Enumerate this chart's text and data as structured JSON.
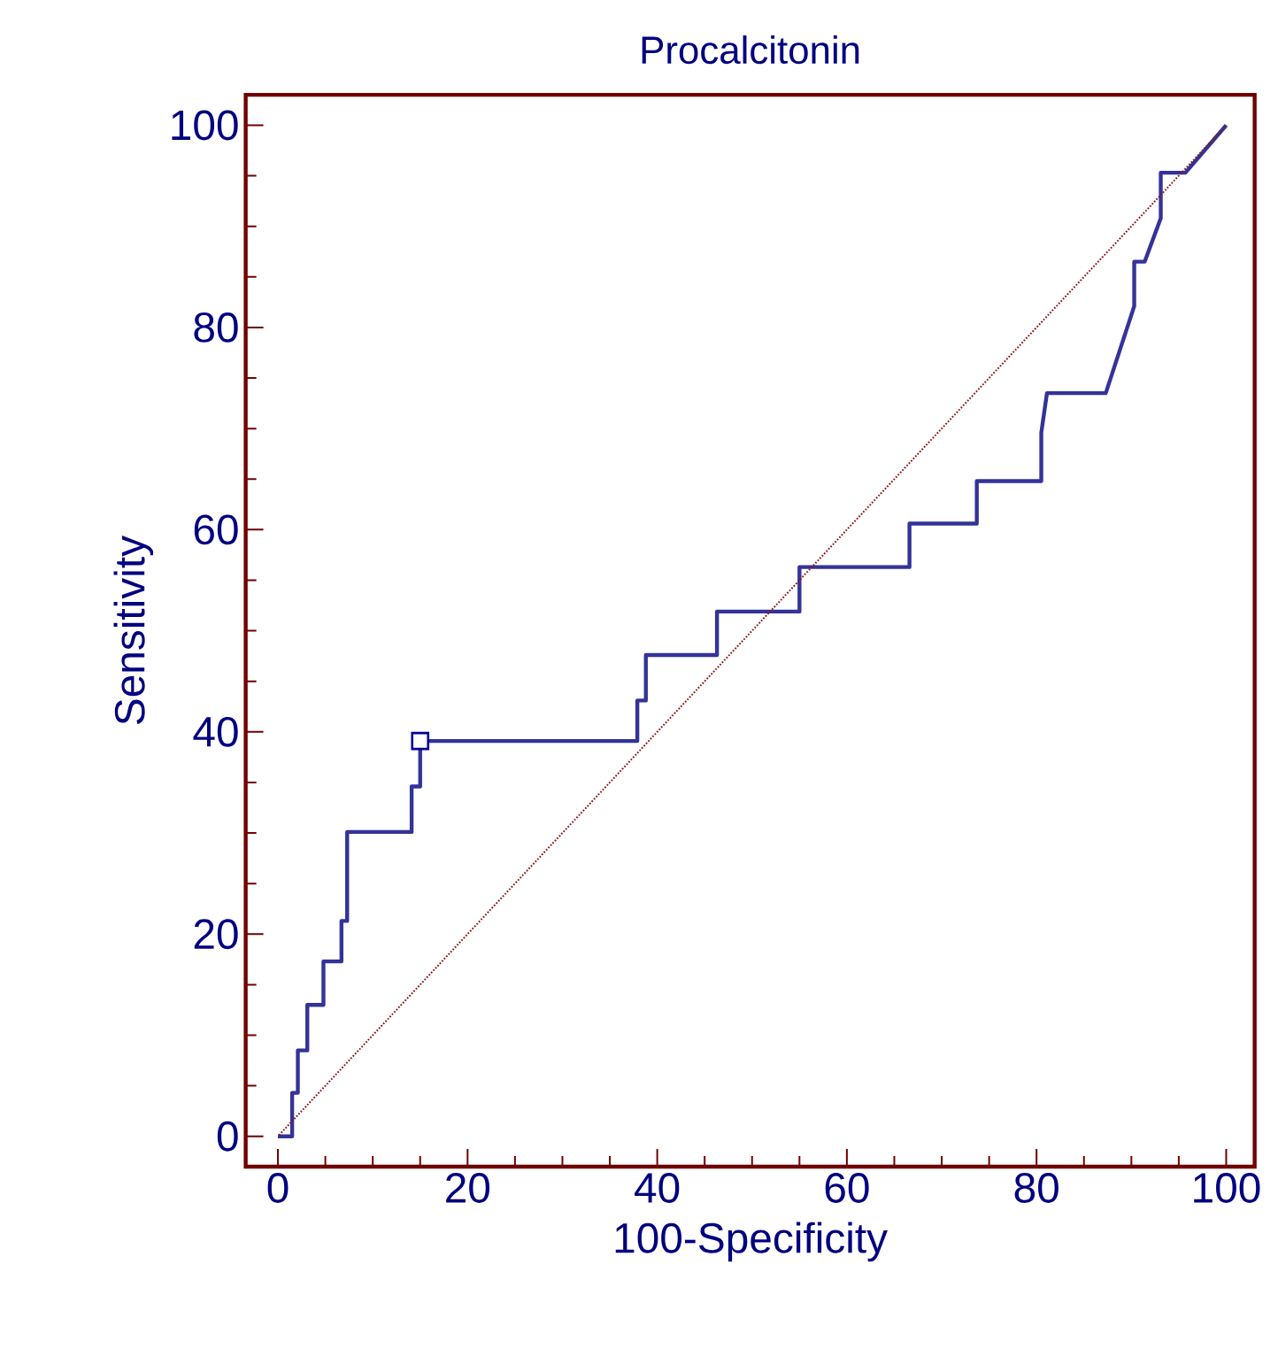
{
  "chart_data": {
    "type": "line",
    "title": "Procalcitonin",
    "xlabel": "100-Specificity",
    "ylabel": "Sensitivity",
    "xlim": [
      -3.4,
      103
    ],
    "ylim": [
      -3,
      103
    ],
    "xticks": [
      0,
      20,
      40,
      60,
      80,
      100
    ],
    "yticks": [
      0,
      20,
      40,
      60,
      80,
      100
    ],
    "series": [
      {
        "color": "#333399",
        "line_style": "solid",
        "marker": "none",
        "x": [
          0,
          1.5,
          1.5,
          2.1,
          2.1,
          3.1,
          3.1,
          4.8,
          4.8,
          6.7,
          6.7,
          7.3,
          7.3,
          14.1,
          14.1,
          15.0,
          15.0,
          37.9,
          37.9,
          38.8,
          38.8,
          46.3,
          46.3,
          55.0,
          55.0,
          66.6,
          66.6,
          73.7,
          73.7,
          80.5,
          80.5,
          81.1,
          87.3,
          90.3,
          90.3,
          91.4,
          93.1,
          93.1,
          95.7,
          100
        ],
        "values": [
          0,
          0,
          4.3,
          4.3,
          8.5,
          8.5,
          13.0,
          13.0,
          17.3,
          17.3,
          21.3,
          21.3,
          30.1,
          30.1,
          34.6,
          34.6,
          39.1,
          39.1,
          43.1,
          43.1,
          47.6,
          47.6,
          51.9,
          51.9,
          56.3,
          56.3,
          60.6,
          60.6,
          64.8,
          64.8,
          69.6,
          73.5,
          73.5,
          82.1,
          86.5,
          86.5,
          90.8,
          95.3,
          95.3,
          100
        ]
      },
      {
        "type": "scatter",
        "color": "#000099",
        "marker": "square",
        "x": [
          15.0
        ],
        "values": [
          39.1
        ]
      },
      {
        "type": "line",
        "color": "#8b1a1a",
        "line_style": "dotted",
        "marker": "none",
        "x": [
          0,
          100
        ],
        "values": [
          0,
          100
        ]
      }
    ]
  }
}
